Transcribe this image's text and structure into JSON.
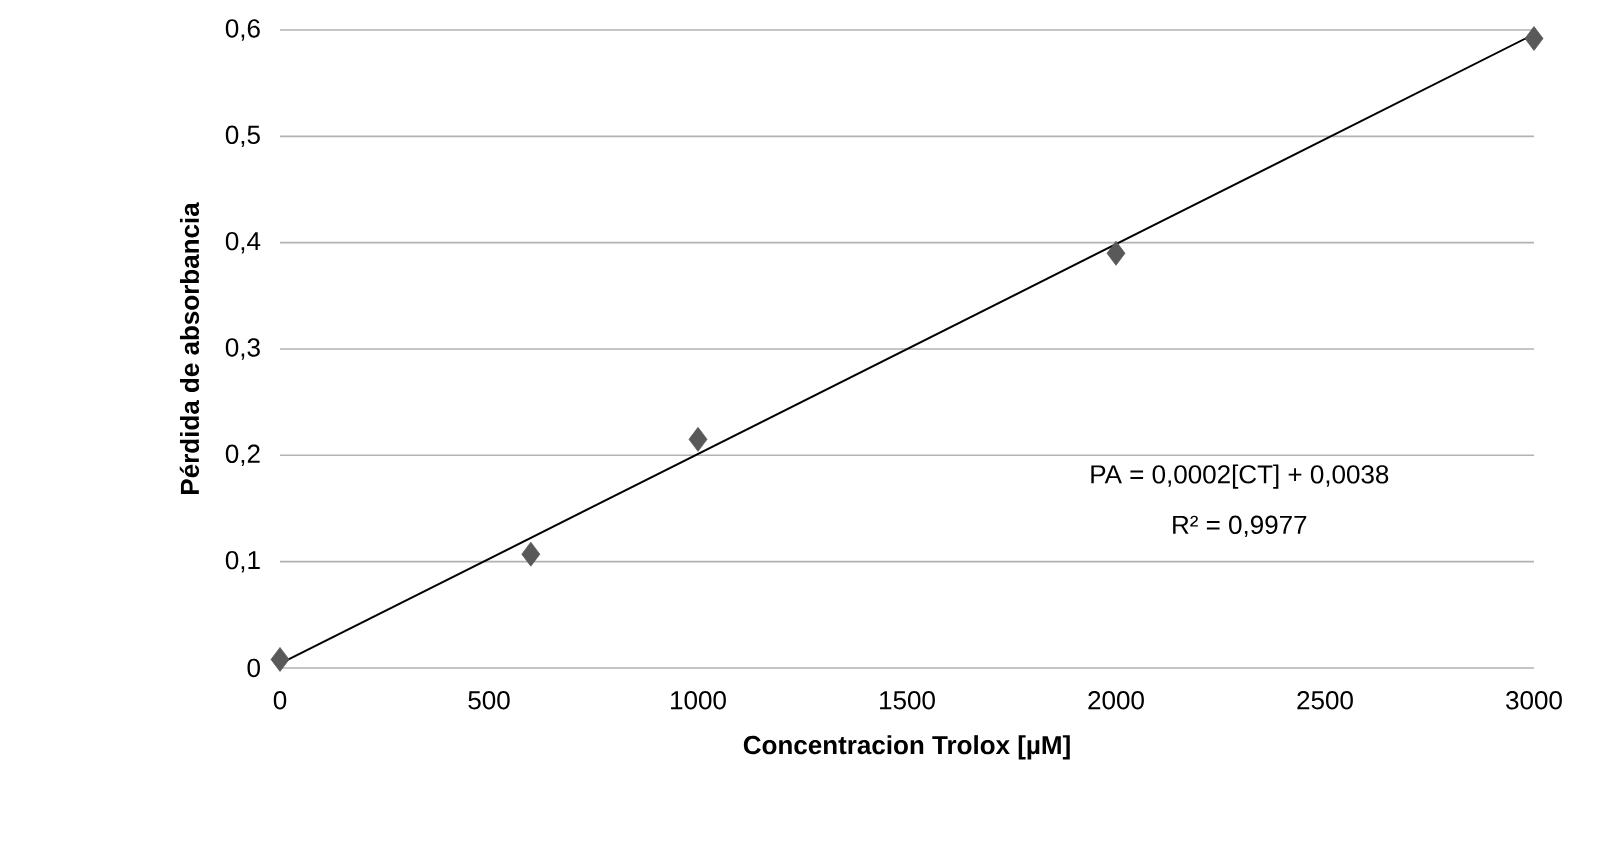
{
  "chart_data": {
    "type": "scatter",
    "xlabel": "Concentracion Trolox [µM]",
    "ylabel": "Pérdida de absorbancia",
    "annotations": [
      "PA = 0,0002[CT] + 0,0038",
      "R² = 0,9977"
    ],
    "series": [
      {
        "color": "#595959",
        "marker": "diamond",
        "x": [
          0,
          600,
          1000,
          2000,
          3000
        ],
        "values": [
          0.008,
          0.107,
          0.215,
          0.39,
          0.592
        ]
      },
      {
        "type": "line",
        "color": "#000000",
        "marker": "none",
        "line_style": "solid",
        "x": [
          0,
          3000
        ],
        "values": [
          0.004,
          0.596
        ]
      }
    ],
    "xlim": [
      0,
      3000
    ],
    "ylim": [
      0,
      0.6
    ],
    "xticks": [
      0,
      500,
      1000,
      1500,
      2000,
      2500,
      3000
    ],
    "yticks": [
      0,
      {
        "value": 0.1,
        "label": "0,1"
      },
      {
        "value": 0.2,
        "label": "0,2"
      },
      {
        "value": 0.3,
        "label": "0,3"
      },
      {
        "value": 0.4,
        "label": "0,4"
      },
      {
        "value": 0.5,
        "label": "0,5"
      },
      {
        "value": 0.6,
        "label": "0,6"
      }
    ],
    "grid": "y"
  }
}
